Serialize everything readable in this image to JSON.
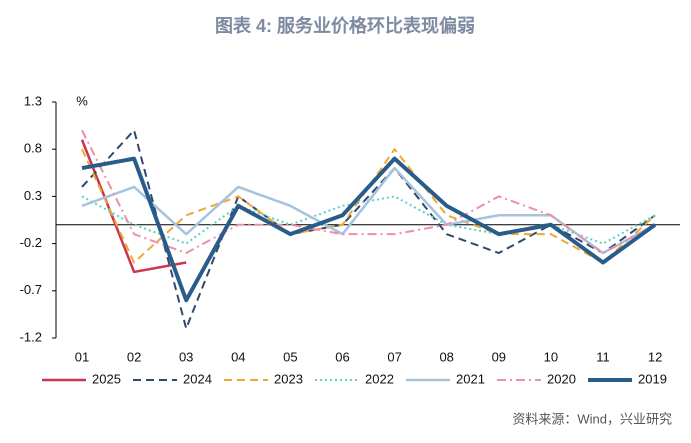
{
  "chart_data": {
    "type": "line",
    "title": "图表 4:   服务业价格环比表现偏弱",
    "y_unit": "%",
    "source": "资料来源：Wind，兴业研究",
    "categories": [
      "01",
      "02",
      "03",
      "04",
      "05",
      "06",
      "07",
      "08",
      "09",
      "10",
      "11",
      "12"
    ],
    "ylim": [
      -1.2,
      1.3
    ],
    "yticks": [
      -1.2,
      -0.7,
      -0.2,
      0.3,
      0.8,
      1.3
    ],
    "series": [
      {
        "name": "2025",
        "color": "#c8374f",
        "style": "solid",
        "width": 2.5,
        "values": [
          0.9,
          -0.5,
          -0.4,
          null,
          null,
          null,
          null,
          null,
          null,
          null,
          null,
          null
        ]
      },
      {
        "name": "2024",
        "color": "#2f4a6e",
        "style": "dashed",
        "width": 2,
        "values": [
          0.4,
          1.0,
          -1.1,
          0.3,
          -0.1,
          0,
          0.6,
          -0.1,
          -0.3,
          0,
          -0.3,
          0.1
        ]
      },
      {
        "name": "2023",
        "color": "#f0a830",
        "style": "dashed",
        "width": 2,
        "values": [
          0.8,
          -0.4,
          0.1,
          0.3,
          -0.1,
          0,
          0.8,
          0.1,
          -0.1,
          -0.1,
          -0.4,
          0.1
        ]
      },
      {
        "name": "2022",
        "color": "#5ccfc4",
        "style": "dotted",
        "width": 2,
        "values": [
          0.3,
          0,
          -0.2,
          0.2,
          0,
          0.2,
          0.3,
          0,
          -0.1,
          0,
          -0.2,
          0.1
        ]
      },
      {
        "name": "2021",
        "color": "#a6c3de",
        "style": "solid",
        "width": 2.5,
        "values": [
          0.2,
          0.4,
          -0.1,
          0.4,
          0.2,
          -0.1,
          0.6,
          0,
          0.1,
          0.1,
          -0.3,
          0
        ]
      },
      {
        "name": "2020",
        "color": "#ec8fa8",
        "style": "dashdot",
        "width": 2,
        "values": [
          1.0,
          -0.1,
          -0.3,
          0,
          0,
          -0.1,
          -0.1,
          0,
          0.3,
          0.1,
          -0.3,
          0
        ]
      },
      {
        "name": "2019",
        "color": "#2a5c8a",
        "style": "solid",
        "width": 4,
        "values": [
          0.6,
          0.7,
          -0.8,
          0.2,
          -0.1,
          0.1,
          0.7,
          0.2,
          -0.1,
          0,
          -0.4,
          0
        ]
      }
    ]
  }
}
